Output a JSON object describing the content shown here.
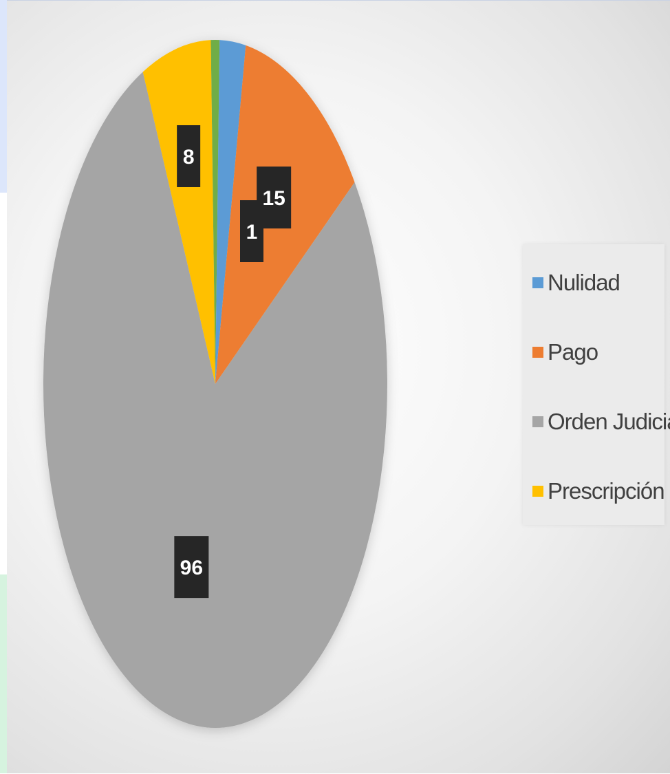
{
  "chart_data": {
    "type": "pie",
    "title": "",
    "categories": [
      "Nulidad",
      "Pago",
      "Orden Judicial",
      "Prescripción"
    ],
    "series": [
      {
        "values": [
          3,
          15,
          96,
          8
        ],
        "data_labels": [
          "",
          "15",
          "96",
          "8"
        ]
      }
    ],
    "extra_labels": [
      "1"
    ],
    "small_slice_value": 1,
    "colors": {
      "Nulidad": "#5b9bd5",
      "Pago": "#ed7d31",
      "Orden Judicial": "#a5a5a5",
      "Prescripción": "#ffc000",
      "small_slice": "#70ad47"
    },
    "legend_position": "right",
    "grid": false
  }
}
